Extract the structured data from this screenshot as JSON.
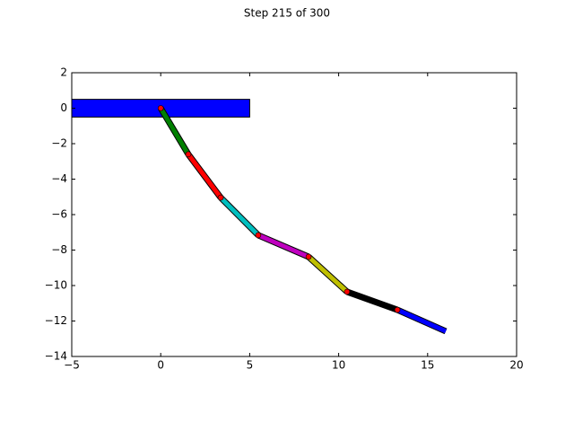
{
  "chart_data": {
    "type": "chain",
    "title": "Step 215 of 300",
    "x": [
      0,
      1.55,
      3.37,
      5.48,
      8.31,
      10.47,
      13.3,
      16.02
    ],
    "y": [
      0,
      -2.6,
      -5.04,
      -7.16,
      -8.38,
      -10.35,
      -11.37,
      -12.58
    ],
    "segment_colors": [
      "#008000",
      "#ff0000",
      "#00bfbf",
      "#bf00bf",
      "#bfbf00",
      "#000000",
      "#0000ff"
    ],
    "joint_color": "#ff0000",
    "base": {
      "x": [
        -5,
        5
      ],
      "y": [
        -0.5,
        0.5
      ],
      "color": "#0000ff"
    },
    "xlim": [
      -5,
      20
    ],
    "ylim": [
      -14,
      2
    ],
    "xticks": [
      {
        "value": -5,
        "label": "−5"
      },
      0,
      5,
      10,
      15,
      20
    ],
    "yticks": [
      2,
      0,
      {
        "value": -2,
        "label": "−2"
      },
      {
        "value": -4,
        "label": "−4"
      },
      {
        "value": -6,
        "label": "−6"
      },
      {
        "value": -8,
        "label": "−8"
      },
      {
        "value": -10,
        "label": "−10"
      },
      {
        "value": -12,
        "label": "−12"
      },
      {
        "value": -14,
        "label": "−14"
      }
    ]
  }
}
